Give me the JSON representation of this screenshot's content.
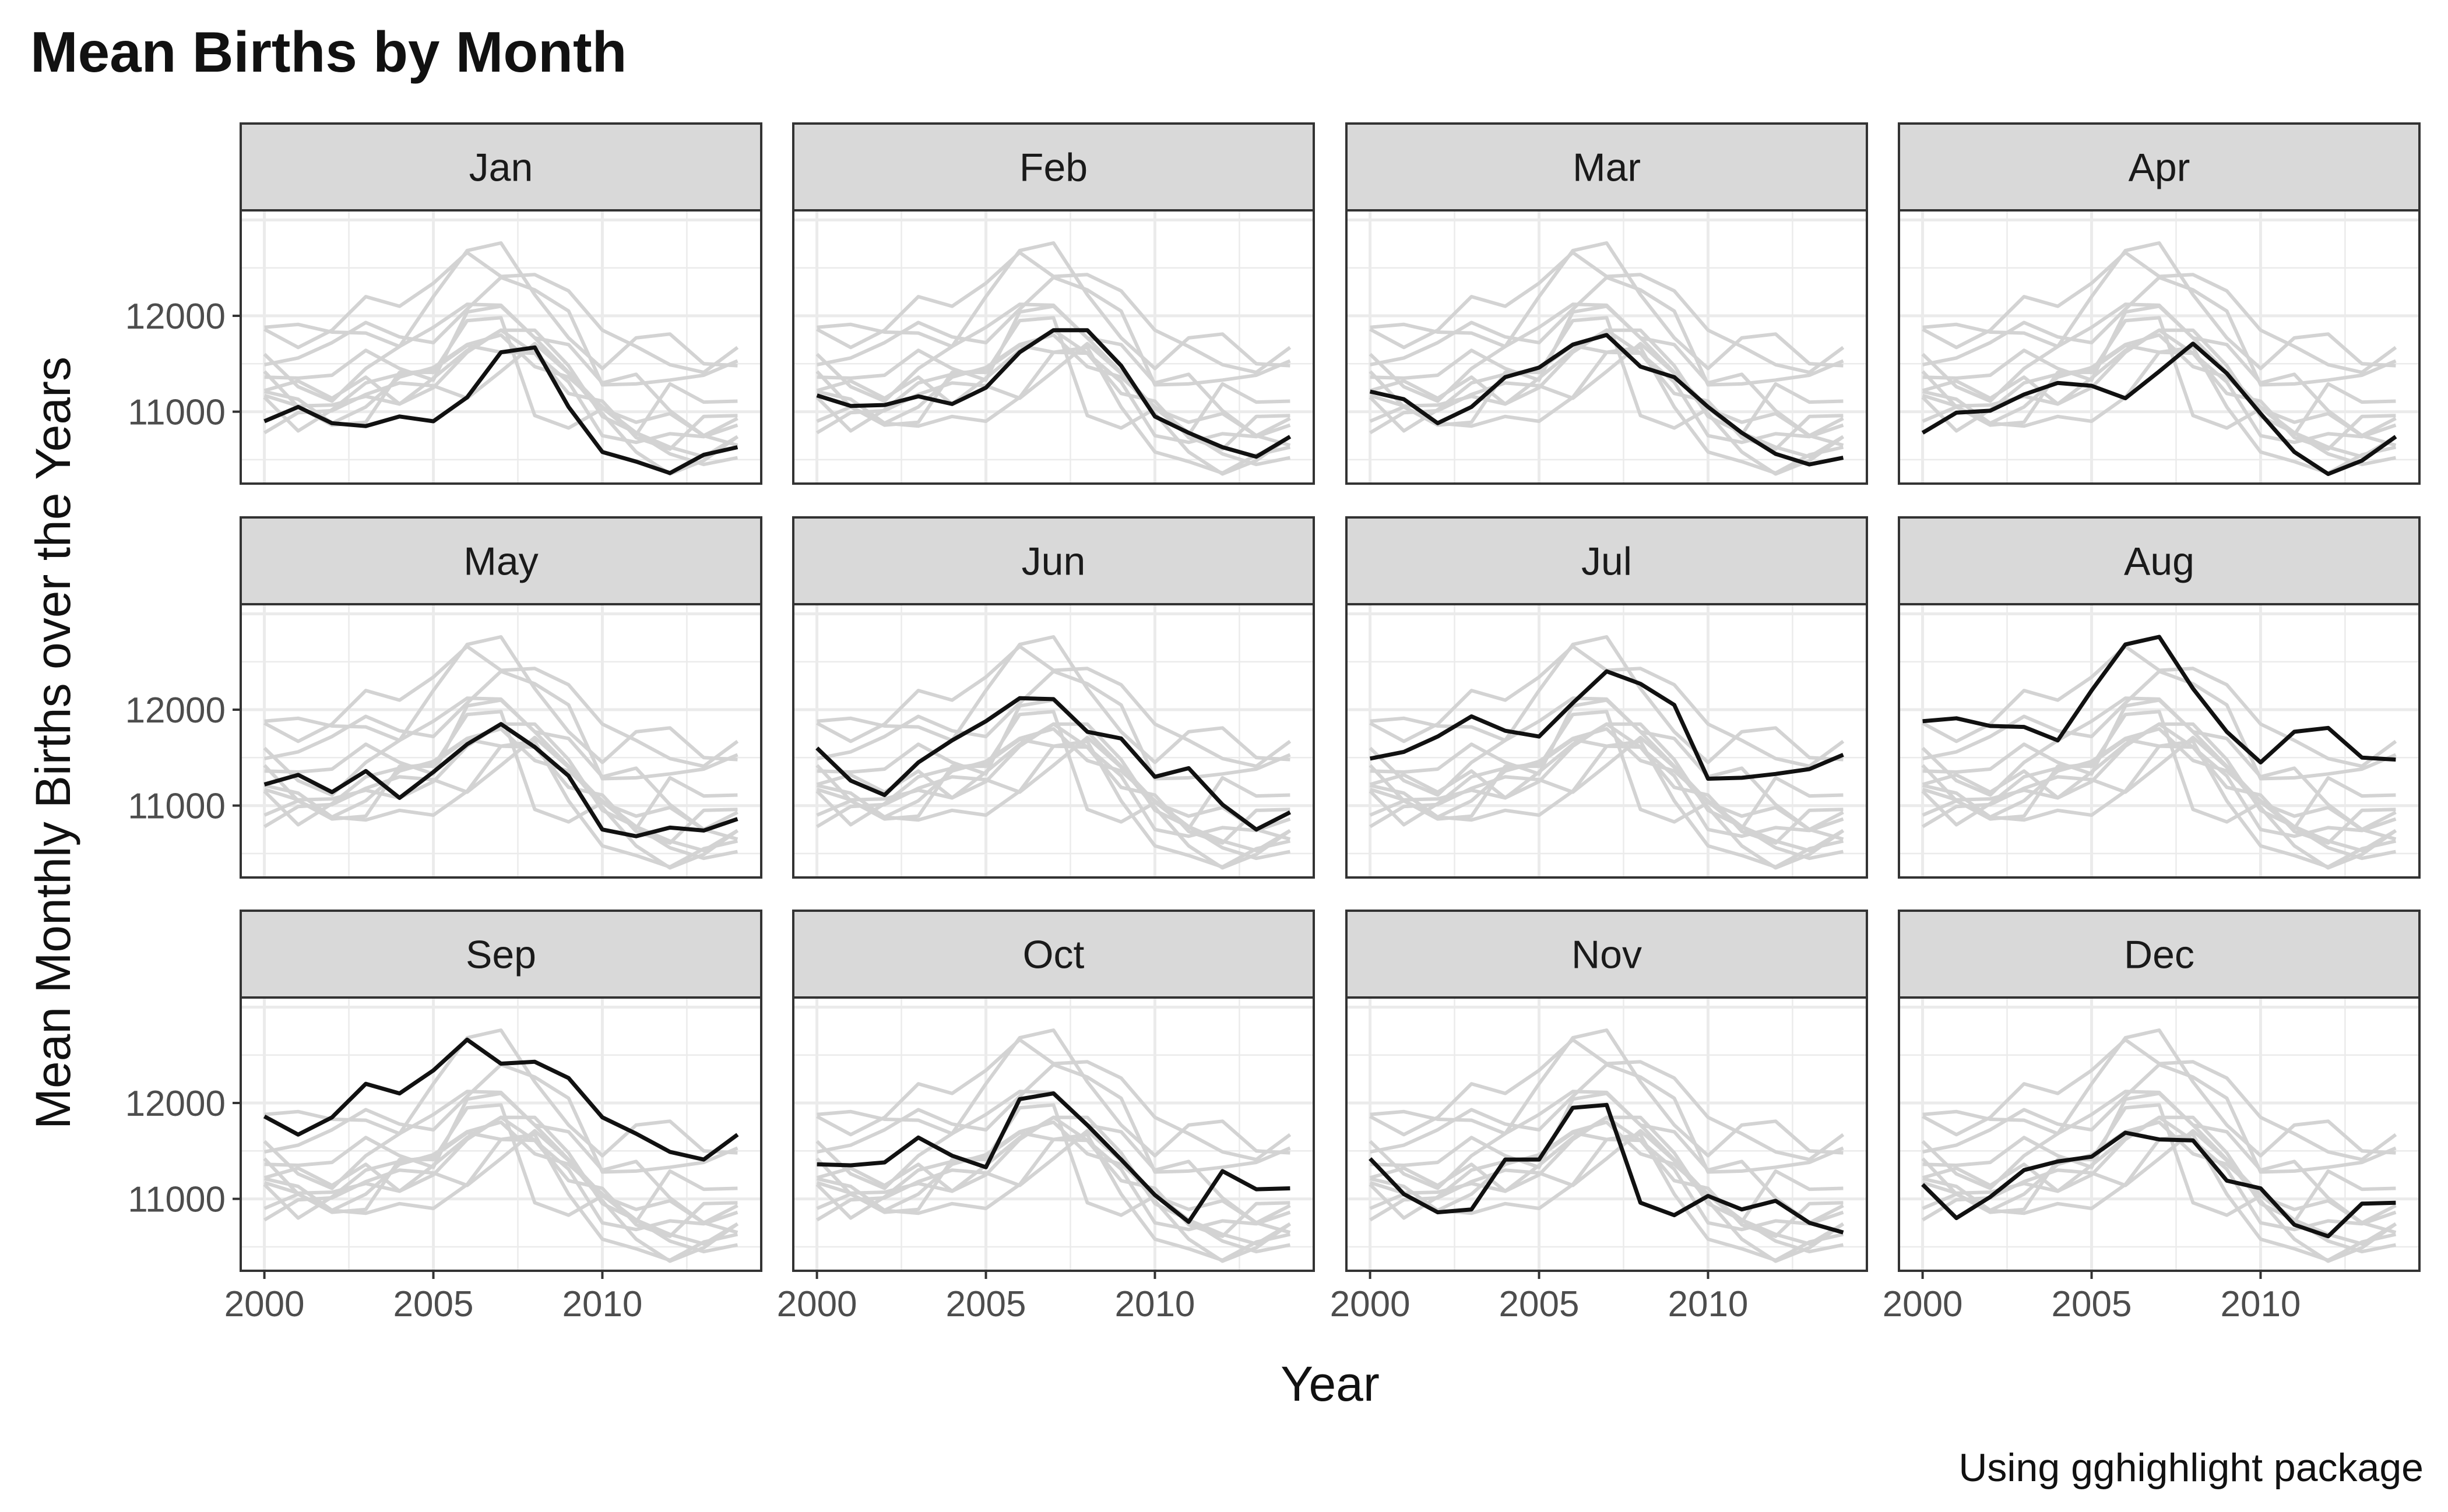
{
  "chart_data": {
    "type": "line",
    "title": "Mean Births by Month",
    "xlabel": "Year",
    "ylabel": "Mean Monthly Births over the Years",
    "caption": "Using gghighlight package",
    "x": [
      2000,
      2001,
      2002,
      2003,
      2004,
      2005,
      2006,
      2007,
      2008,
      2009,
      2010,
      2011,
      2012,
      2013,
      2014
    ],
    "x_ticks": [
      2000,
      2005,
      2010
    ],
    "x_tick_labels": [
      "2000",
      "2005",
      "2010"
    ],
    "y_ticks": [
      11000,
      12000
    ],
    "y_tick_labels": [
      "11000",
      "12000"
    ],
    "xlim": [
      1999.3,
      2014.7
    ],
    "ylim": [
      10250,
      13100
    ],
    "facet_layout": "4 columns x 3 rows",
    "grid": true,
    "highlight_color": "#111111",
    "background_series_color": "#d3d3d3",
    "strip_fill": "#d9d9d9",
    "series": [
      {
        "name": "Jan",
        "values": [
          10900,
          11050,
          10880,
          10850,
          10950,
          10900,
          11150,
          11620,
          11670,
          11050,
          10580,
          10480,
          10360,
          10550,
          10630
        ]
      },
      {
        "name": "Feb",
        "values": [
          11170,
          11060,
          11070,
          11160,
          11080,
          11250,
          11620,
          11850,
          11850,
          11480,
          10950,
          10780,
          10630,
          10530,
          10740
        ]
      },
      {
        "name": "Mar",
        "values": [
          11210,
          11130,
          10880,
          11050,
          11360,
          11460,
          11700,
          11800,
          11470,
          11360,
          11050,
          10780,
          10560,
          10450,
          10520
        ]
      },
      {
        "name": "Apr",
        "values": [
          10780,
          10990,
          11010,
          11180,
          11300,
          11270,
          11140,
          11420,
          11710,
          11400,
          10980,
          10580,
          10350,
          10490,
          10740
        ]
      },
      {
        "name": "May",
        "values": [
          11220,
          11320,
          11140,
          11360,
          11080,
          11350,
          11640,
          11850,
          11610,
          11310,
          10750,
          10680,
          10770,
          10740,
          10860
        ]
      },
      {
        "name": "Jun",
        "values": [
          11600,
          11260,
          11110,
          11450,
          11680,
          11880,
          12120,
          12110,
          11770,
          11700,
          11300,
          11390,
          11010,
          10750,
          10930
        ]
      },
      {
        "name": "Jul",
        "values": [
          11490,
          11560,
          11720,
          11930,
          11780,
          11720,
          12070,
          12400,
          12270,
          12050,
          11280,
          11290,
          11330,
          11380,
          11530
        ]
      },
      {
        "name": "Aug",
        "values": [
          11880,
          11910,
          11830,
          11820,
          11680,
          12200,
          12680,
          12760,
          12220,
          11770,
          11450,
          11770,
          11810,
          11500,
          11480
        ]
      },
      {
        "name": "Sep",
        "values": [
          11860,
          11670,
          11850,
          12200,
          12100,
          12340,
          12660,
          12410,
          12430,
          12260,
          11850,
          11680,
          11490,
          11410,
          11670
        ]
      },
      {
        "name": "Oct",
        "values": [
          11360,
          11350,
          11380,
          11640,
          11450,
          11330,
          12040,
          12100,
          11770,
          11410,
          11040,
          10760,
          11290,
          11100,
          11110
        ]
      },
      {
        "name": "Nov",
        "values": [
          11420,
          11050,
          10860,
          10890,
          11410,
          11410,
          11950,
          11980,
          10960,
          10830,
          11030,
          10890,
          10980,
          10750,
          10650
        ]
      },
      {
        "name": "Dec",
        "values": [
          11150,
          10800,
          11020,
          11300,
          11390,
          11440,
          11690,
          11620,
          11610,
          11190,
          11110,
          10730,
          10610,
          10950,
          10960
        ]
      }
    ]
  }
}
